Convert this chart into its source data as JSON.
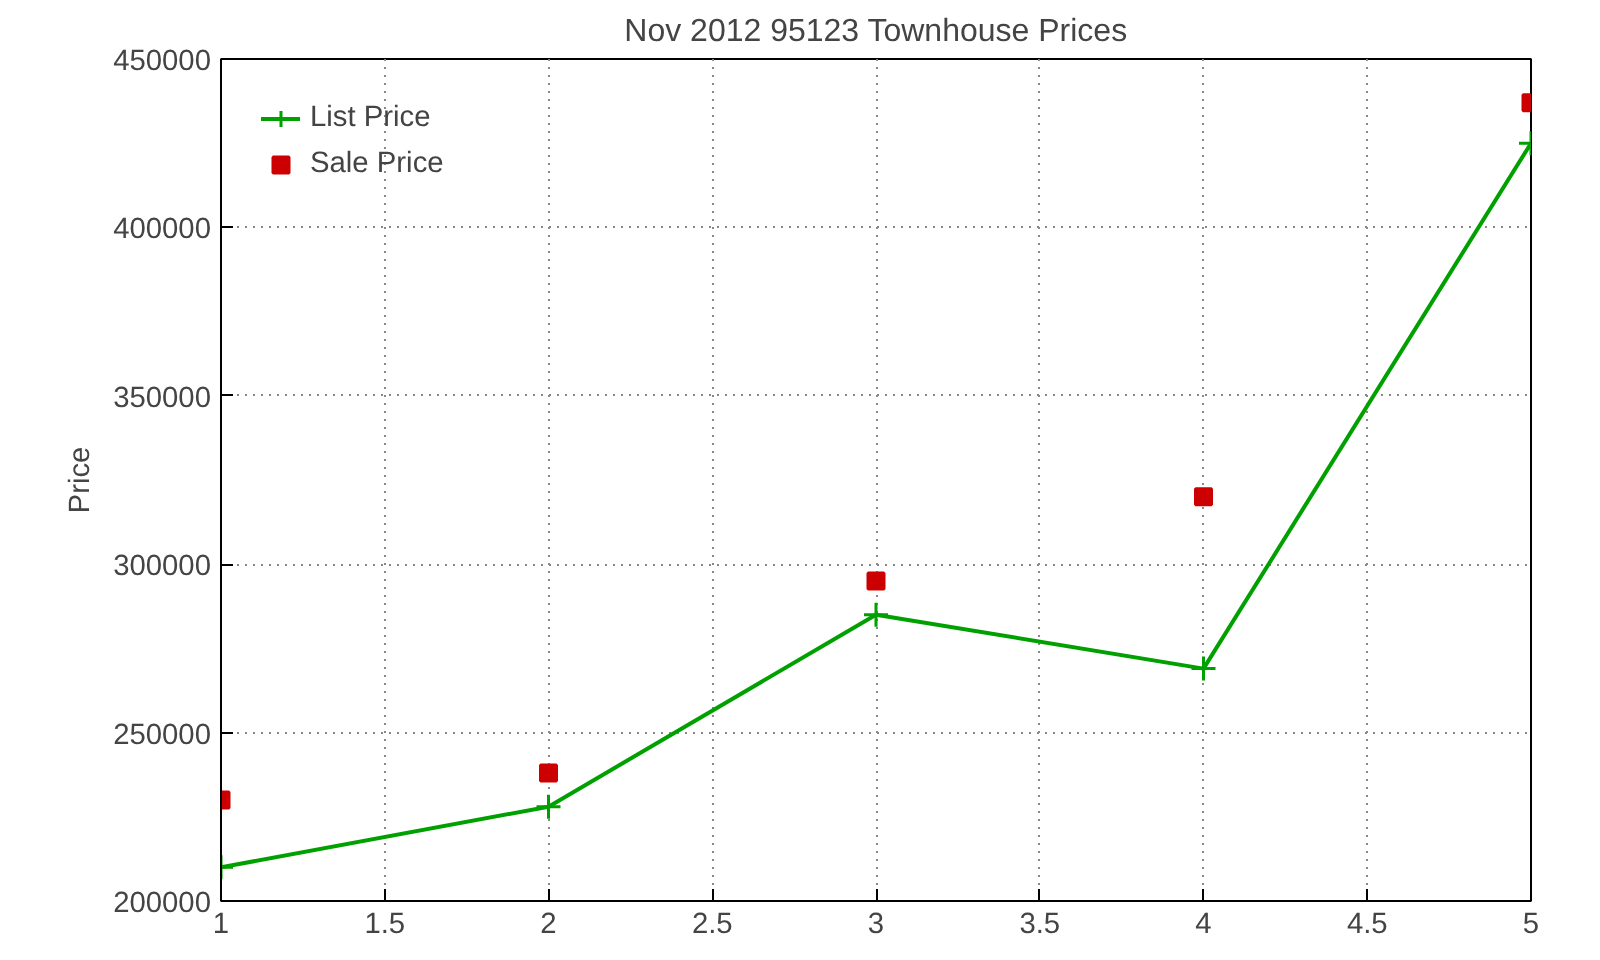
{
  "chart_data": {
    "type": "line",
    "title": "Nov 2012 95123 Townhouse Prices",
    "ylabel": "Price",
    "x": [
      1,
      2,
      3,
      4,
      5
    ],
    "series": [
      {
        "name": "List Price",
        "color": "#00a000",
        "values": [
          210000,
          228000,
          285000,
          269000,
          425000
        ],
        "marker": "cross"
      },
      {
        "name": "Sale Price",
        "color": "#cc0000",
        "values": [
          230000,
          238000,
          295000,
          320000,
          437000
        ],
        "type": "scatter",
        "marker": "square"
      }
    ],
    "xlim": [
      1,
      5
    ],
    "xticks": [
      1,
      1.5,
      2,
      2.5,
      3,
      3.5,
      4,
      4.5,
      5
    ],
    "ylim": [
      200000,
      450000
    ],
    "yticks": [
      200000,
      250000,
      300000,
      350000,
      400000,
      450000
    ],
    "grid": true,
    "legend": "top left"
  }
}
